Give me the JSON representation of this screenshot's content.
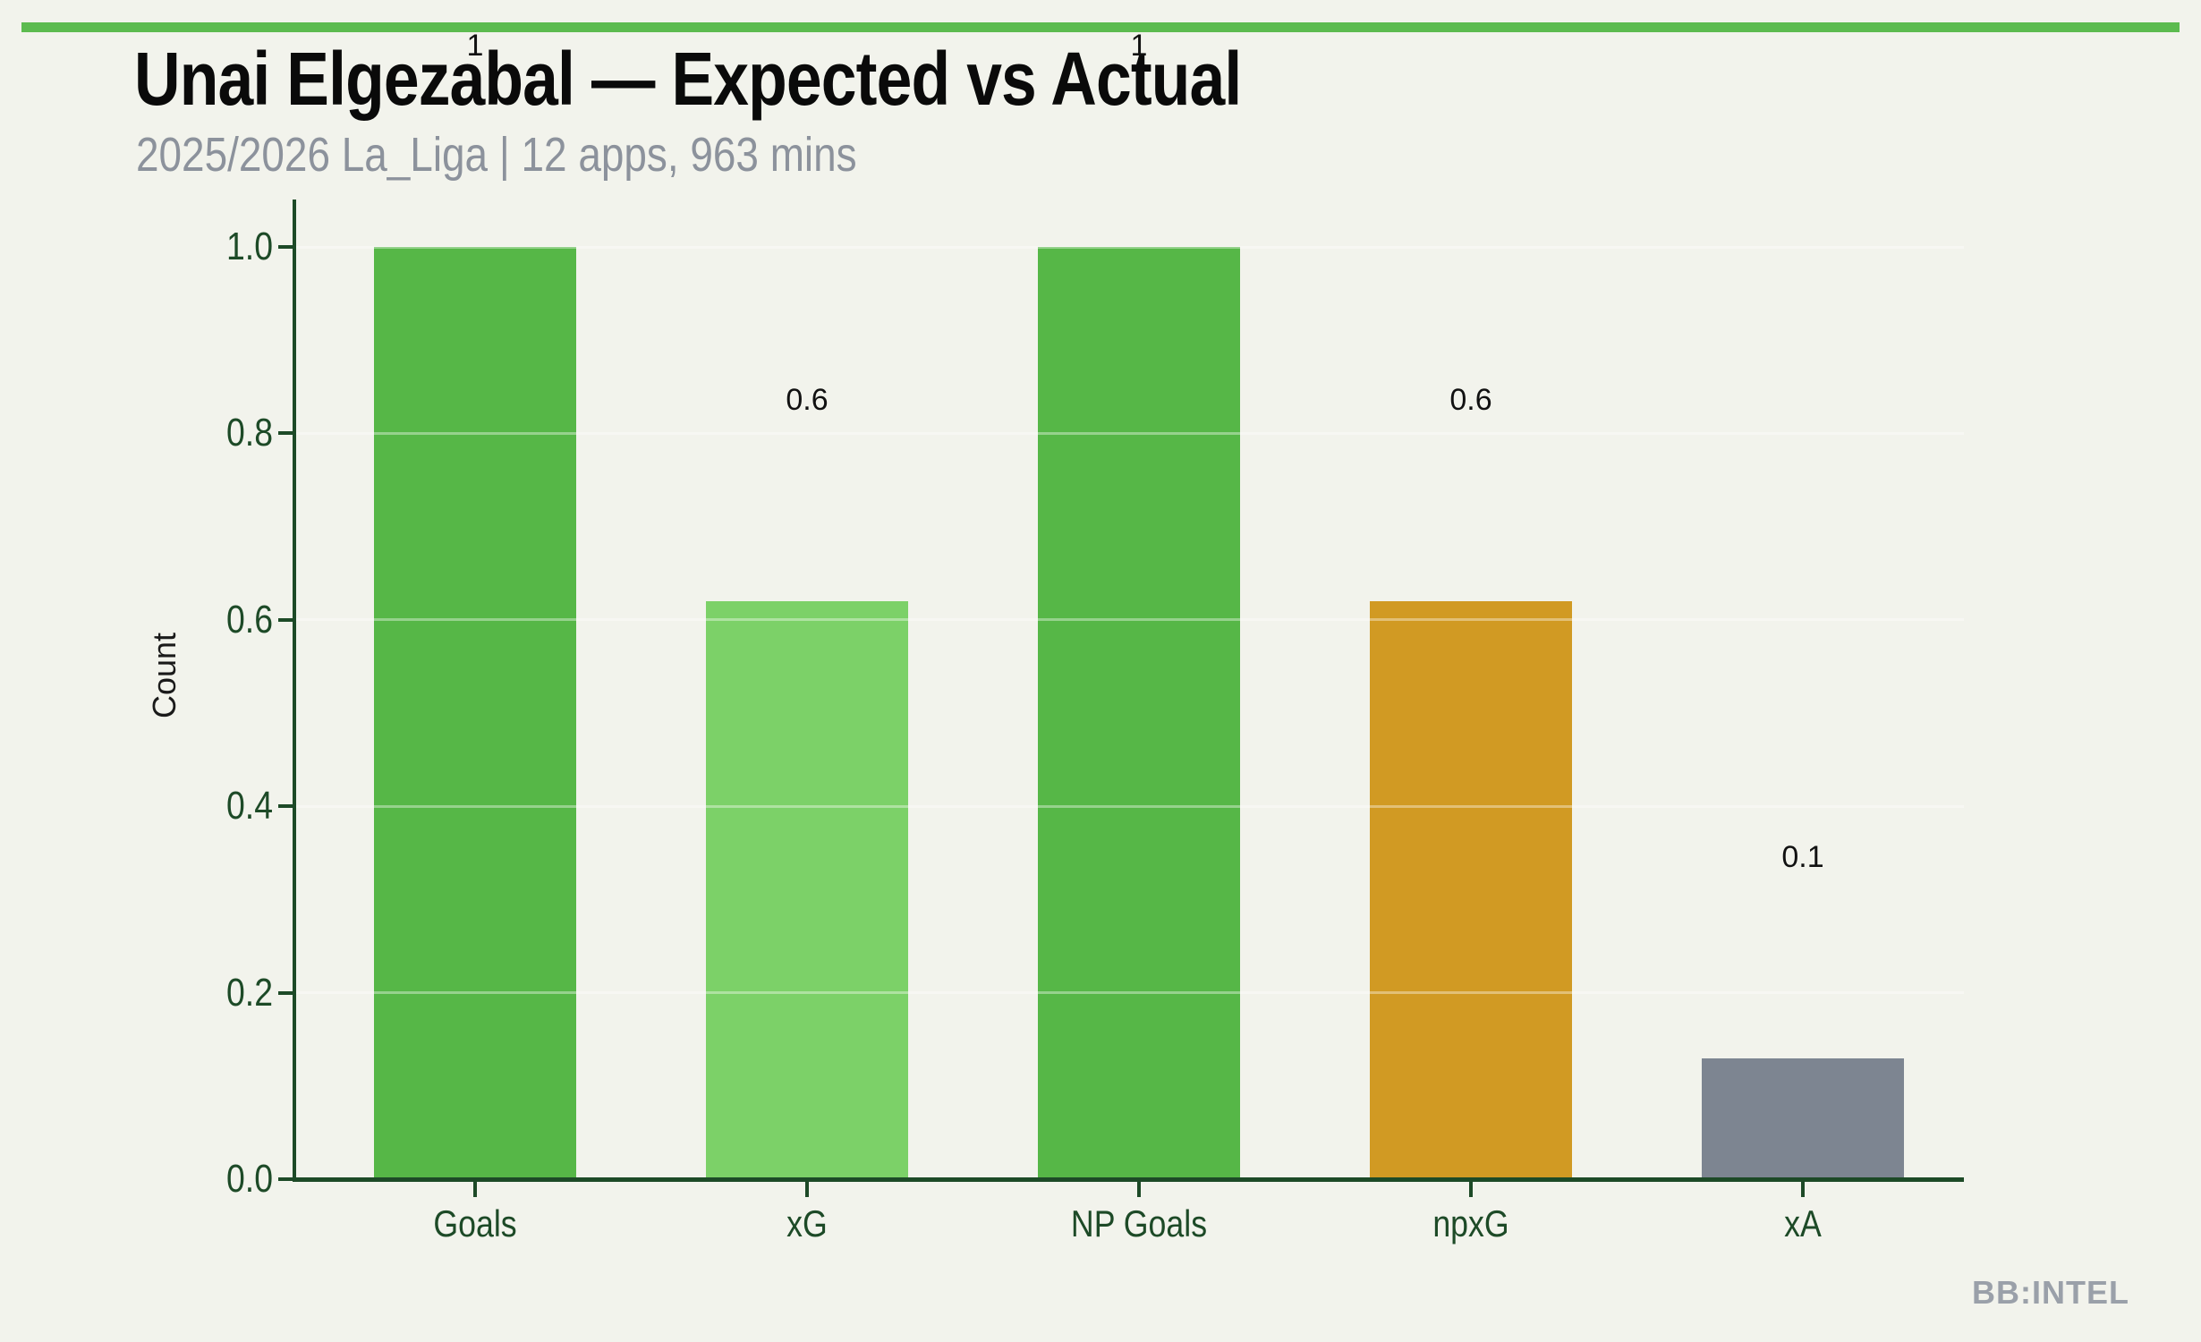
{
  "header": {
    "title": "Unai Elgezabal — Expected vs Actual",
    "subtitle": "2025/2026 La_Liga | 12 apps, 963 mins"
  },
  "footer": {
    "watermark": "BB:INTEL"
  },
  "colors": {
    "background": "#f2f3ec",
    "accent_stripe": "#5cbb4f",
    "axis": "#1d4a27",
    "title": "#0a0a0a",
    "subtitle": "#8c929c",
    "watermark": "#9aa0a9",
    "gridline": "rgba(255,255,255,0.38)",
    "value_label": "#111111",
    "bar_green": "#56b747",
    "bar_light_green": "#7cd168",
    "bar_orange": "#d19a23",
    "bar_gray": "#7d8591"
  },
  "chart_data": {
    "type": "bar",
    "title": "Unai Elgezabal — Expected vs Actual",
    "subtitle": "2025/2026 La_Liga | 12 apps, 963 mins",
    "categories": [
      "Goals",
      "xG",
      "NP Goals",
      "npxG",
      "xA"
    ],
    "values": [
      1.0,
      0.62,
      1.0,
      0.62,
      0.13
    ],
    "value_labels": [
      "1",
      "0.6",
      "1",
      "0.6",
      "0.1"
    ],
    "bar_colors": [
      "#56b747",
      "#7cd168",
      "#56b747",
      "#d19a23",
      "#7d8591"
    ],
    "xlabel": "",
    "ylabel": "Count",
    "ylim": [
      0,
      1.0
    ],
    "yticks": [
      0.0,
      0.2,
      0.4,
      0.6,
      0.8,
      1.0
    ],
    "ytick_labels": [
      "0.0",
      "0.2",
      "0.4",
      "0.6",
      "0.8",
      "1.0"
    ],
    "grid": "horizontal",
    "legend": "none"
  }
}
